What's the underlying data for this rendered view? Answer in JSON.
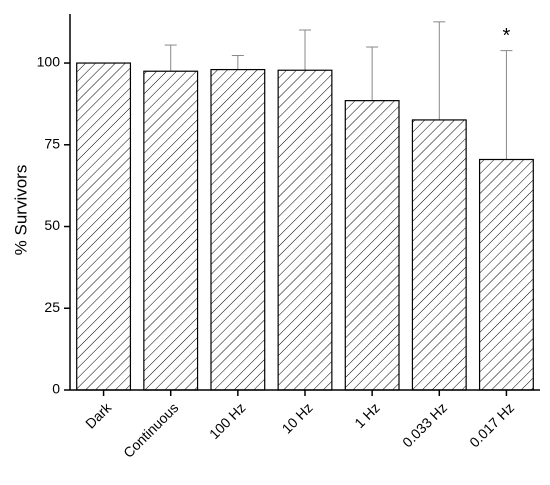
{
  "chart_data": {
    "type": "bar",
    "ylabel": "% Survivors",
    "categories": [
      "Dark",
      "Continuous",
      "100 Hz",
      "10 Hz",
      "1 Hz",
      "0.033 Hz",
      "0.017 Hz"
    ],
    "values": [
      100,
      97.5,
      98,
      97.8,
      88.5,
      82.6,
      70.5
    ],
    "errors": [
      0,
      8,
      4.3,
      12.3,
      16.4,
      30,
      33.3
    ],
    "color": "#000000",
    "error_color": "#888888",
    "ylim": [
      0,
      115
    ],
    "yticks": [
      0,
      25,
      50,
      75,
      100
    ],
    "annotations": [
      {
        "text": "*",
        "category": "0.017 Hz"
      }
    ]
  }
}
